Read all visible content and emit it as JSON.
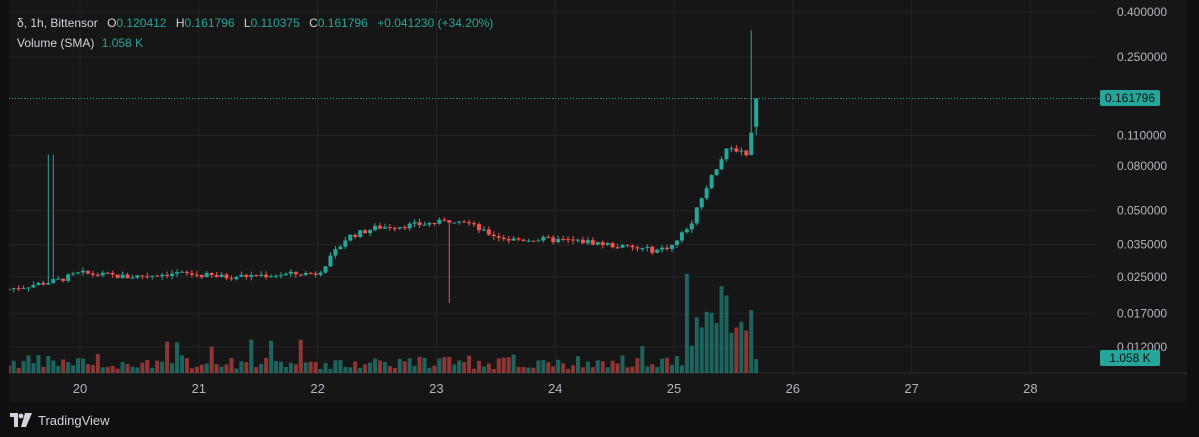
{
  "legend": {
    "symbol_glyph": "δ",
    "symbol": ", 1h, Bittensor",
    "open_label": "O",
    "open": "0.120412",
    "high_label": "H",
    "high": "0.161796",
    "low_label": "L",
    "low": "0.110375",
    "close_label": "C",
    "close": "0.161796",
    "change": "+0.041230 (+34.20%)",
    "volume_label": "Volume (SMA)",
    "volume_value": "1.058 K"
  },
  "footer": {
    "brand": "TradingView",
    "logo_icon": "tradingview-logo-icon"
  },
  "colors": {
    "up": "#26a69a",
    "down": "#ef5350",
    "background": "#161616",
    "grid": "#232323"
  },
  "chart_data": {
    "type": "candlestick",
    "y_scale": "log",
    "y_ticks": [
      "0.400000",
      "0.250000",
      "0.110000",
      "0.080000",
      "0.050000",
      "0.035000",
      "0.025000",
      "0.017000",
      "0.012000"
    ],
    "x_ticks": [
      "20",
      "21",
      "22",
      "23",
      "24",
      "25",
      "26",
      "27",
      "28"
    ],
    "last_price": "0.161796",
    "volume_last": "1.058 K",
    "keyframes": [
      [
        19.4,
        0.022
      ],
      [
        19.6,
        0.023
      ],
      [
        19.8,
        0.024
      ],
      [
        20.0,
        0.026
      ],
      [
        20.4,
        0.025
      ],
      [
        20.8,
        0.026
      ],
      [
        21.2,
        0.025
      ],
      [
        21.6,
        0.0255
      ],
      [
        22.0,
        0.026
      ],
      [
        22.1,
        0.03
      ],
      [
        22.25,
        0.038
      ],
      [
        22.5,
        0.042
      ],
      [
        22.8,
        0.043
      ],
      [
        23.0,
        0.044
      ],
      [
        23.2,
        0.046
      ],
      [
        23.4,
        0.04
      ],
      [
        23.6,
        0.037
      ],
      [
        23.9,
        0.037
      ],
      [
        24.3,
        0.036
      ],
      [
        24.6,
        0.034
      ],
      [
        24.85,
        0.033
      ],
      [
        25.0,
        0.035
      ],
      [
        25.15,
        0.045
      ],
      [
        25.3,
        0.07
      ],
      [
        25.45,
        0.095
      ],
      [
        25.55,
        0.095
      ],
      [
        25.62,
        0.09
      ],
      [
        25.7,
        0.161796
      ]
    ]
  }
}
